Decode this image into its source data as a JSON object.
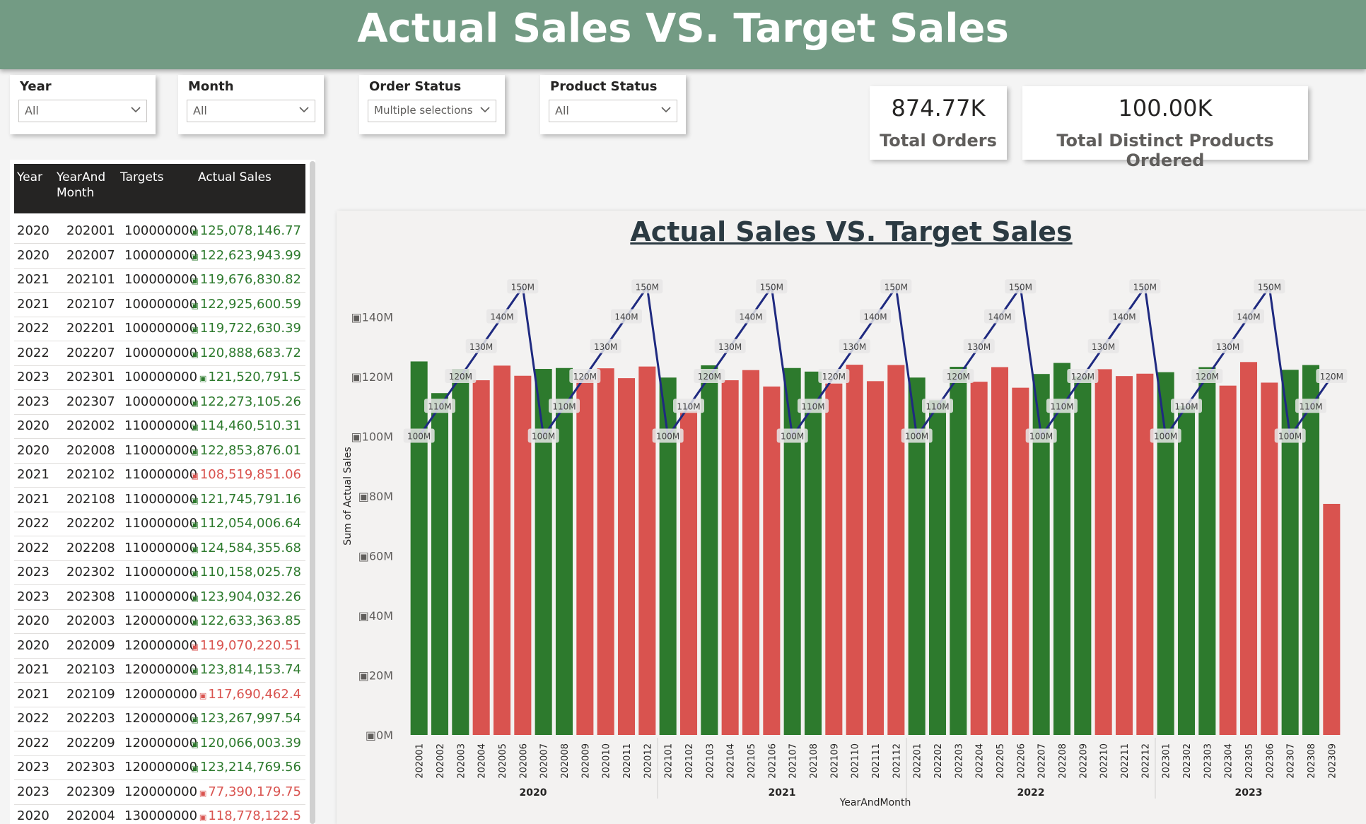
{
  "header": {
    "title": "Actual Sales VS. Target Sales"
  },
  "slicers": [
    {
      "label": "Year",
      "value": "All"
    },
    {
      "label": "Month",
      "value": "All"
    },
    {
      "label": "Order Status",
      "value": "Multiple selections"
    },
    {
      "label": "Product Status",
      "value": "All"
    }
  ],
  "cards": [
    {
      "value": "874.77K",
      "label": "Total Orders"
    },
    {
      "value": "100.00K",
      "label": "Total Distinct Products Ordered"
    }
  ],
  "table": {
    "columns": [
      "Year",
      "YearAnd Month",
      "Targets",
      "Actual Sales"
    ],
    "currency_icon": "currency-icon",
    "rows": [
      {
        "year": "2020",
        "ym": "202001",
        "target": "100000000",
        "actual": "125,078,146.77",
        "status": "above"
      },
      {
        "year": "2020",
        "ym": "202007",
        "target": "100000000",
        "actual": "122,623,943.99",
        "status": "above"
      },
      {
        "year": "2021",
        "ym": "202101",
        "target": "100000000",
        "actual": "119,676,830.82",
        "status": "above"
      },
      {
        "year": "2021",
        "ym": "202107",
        "target": "100000000",
        "actual": "122,925,600.59",
        "status": "above"
      },
      {
        "year": "2022",
        "ym": "202201",
        "target": "100000000",
        "actual": "119,722,630.39",
        "status": "above"
      },
      {
        "year": "2022",
        "ym": "202207",
        "target": "100000000",
        "actual": "120,888,683.72",
        "status": "above"
      },
      {
        "year": "2023",
        "ym": "202301",
        "target": "100000000",
        "actual": "121,520,791.5",
        "status": "above"
      },
      {
        "year": "2023",
        "ym": "202307",
        "target": "100000000",
        "actual": "122,273,105.26",
        "status": "above"
      },
      {
        "year": "2020",
        "ym": "202002",
        "target": "110000000",
        "actual": "114,460,510.31",
        "status": "above"
      },
      {
        "year": "2020",
        "ym": "202008",
        "target": "110000000",
        "actual": "122,853,876.01",
        "status": "above"
      },
      {
        "year": "2021",
        "ym": "202102",
        "target": "110000000",
        "actual": "108,519,851.06",
        "status": "below"
      },
      {
        "year": "2021",
        "ym": "202108",
        "target": "110000000",
        "actual": "121,745,791.16",
        "status": "above"
      },
      {
        "year": "2022",
        "ym": "202202",
        "target": "110000000",
        "actual": "112,054,006.64",
        "status": "above"
      },
      {
        "year": "2022",
        "ym": "202208",
        "target": "110000000",
        "actual": "124,584,355.68",
        "status": "above"
      },
      {
        "year": "2023",
        "ym": "202302",
        "target": "110000000",
        "actual": "110,158,025.78",
        "status": "above"
      },
      {
        "year": "2023",
        "ym": "202308",
        "target": "110000000",
        "actual": "123,904,032.26",
        "status": "above"
      },
      {
        "year": "2020",
        "ym": "202003",
        "target": "120000000",
        "actual": "122,633,363.85",
        "status": "above"
      },
      {
        "year": "2020",
        "ym": "202009",
        "target": "120000000",
        "actual": "119,070,220.51",
        "status": "below"
      },
      {
        "year": "2021",
        "ym": "202103",
        "target": "120000000",
        "actual": "123,814,153.74",
        "status": "above"
      },
      {
        "year": "2021",
        "ym": "202109",
        "target": "120000000",
        "actual": "117,690,462.4",
        "status": "below"
      },
      {
        "year": "2022",
        "ym": "202203",
        "target": "120000000",
        "actual": "123,267,997.54",
        "status": "above"
      },
      {
        "year": "2022",
        "ym": "202209",
        "target": "120000000",
        "actual": "120,066,003.39",
        "status": "above"
      },
      {
        "year": "2023",
        "ym": "202303",
        "target": "120000000",
        "actual": "123,214,769.56",
        "status": "above"
      },
      {
        "year": "2023",
        "ym": "202309",
        "target": "120000000",
        "actual": "77,390,179.75",
        "status": "below"
      },
      {
        "year": "2020",
        "ym": "202004",
        "target": "130000000",
        "actual": "118,778,122.5",
        "status": "below"
      }
    ]
  },
  "colors": {
    "above_target": "#2d7a2d",
    "below_target": "#d9534f",
    "target_line": "#1f2a80",
    "banner": "#739b84"
  },
  "chart_data": {
    "type": "bar",
    "title": "Actual Sales VS. Target Sales",
    "xlabel": "YearAndMonth",
    "ylabel": "Sum of Actual Sales",
    "ylim": [
      0,
      160
    ],
    "yticks": [
      "0M",
      "20M",
      "40M",
      "60M",
      "80M",
      "100M",
      "120M",
      "140M"
    ],
    "ytick_values": [
      0,
      20,
      40,
      60,
      80,
      100,
      120,
      140
    ],
    "year_groups": [
      {
        "label": "2020",
        "count": 12
      },
      {
        "label": "2021",
        "count": 12
      },
      {
        "label": "2022",
        "count": 12
      },
      {
        "label": "2023",
        "count": 9
      }
    ],
    "categories": [
      "202001",
      "202002",
      "202003",
      "202004",
      "202005",
      "202006",
      "202007",
      "202008",
      "202009",
      "202010",
      "202011",
      "202012",
      "202101",
      "202102",
      "202103",
      "202104",
      "202105",
      "202106",
      "202107",
      "202108",
      "202109",
      "202110",
      "202111",
      "202112",
      "202201",
      "202202",
      "202203",
      "202204",
      "202205",
      "202206",
      "202207",
      "202208",
      "202209",
      "202210",
      "202211",
      "202212",
      "202301",
      "202302",
      "202303",
      "202304",
      "202305",
      "202306",
      "202307",
      "202308",
      "202309"
    ],
    "series": [
      {
        "name": "Sum of Actual Sales",
        "values": [
          125.1,
          114.5,
          122.6,
          118.8,
          123.7,
          120.3,
          122.6,
          122.9,
          119.1,
          122.8,
          119.5,
          123.4,
          119.7,
          108.5,
          123.8,
          118.8,
          122.2,
          116.7,
          122.9,
          121.7,
          117.7,
          124.0,
          118.5,
          123.9,
          119.7,
          112.1,
          123.3,
          118.3,
          123.2,
          116.3,
          120.9,
          124.6,
          120.1,
          122.5,
          120.2,
          121.0,
          121.5,
          110.2,
          123.2,
          117.0,
          124.9,
          118.0,
          122.3,
          123.9,
          77.4
        ]
      },
      {
        "name": "Targets",
        "values": [
          100,
          110,
          120,
          130,
          140,
          150,
          100,
          110,
          120,
          130,
          140,
          150,
          100,
          110,
          120,
          130,
          140,
          150,
          100,
          110,
          120,
          130,
          140,
          150,
          100,
          110,
          120,
          130,
          140,
          150,
          100,
          110,
          120,
          130,
          140,
          150,
          100,
          110,
          120,
          130,
          140,
          150,
          100,
          110,
          120
        ]
      }
    ],
    "target_labels": [
      "100M",
      "110M",
      "120M",
      "130M",
      "140M",
      "150M",
      "100M",
      "110M",
      "120M",
      "130M",
      "140M",
      "150M",
      "100M",
      "110M",
      "120M",
      "130M",
      "140M",
      "150M",
      "100M",
      "110M",
      "120M",
      "130M",
      "140M",
      "150M",
      "100M",
      "110M",
      "120M",
      "130M",
      "140M",
      "150M",
      "100M",
      "110M",
      "120M",
      "130M",
      "140M",
      "150M",
      "100M",
      "110M",
      "120M",
      "130M",
      "140M",
      "150M",
      "100M",
      "110M",
      "120M"
    ]
  }
}
